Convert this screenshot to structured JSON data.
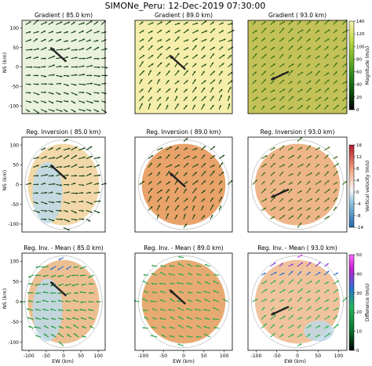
{
  "figure": {
    "suptitle": "SIMONe_Peru: 12-Dec-2019 07:30:00"
  },
  "axes_labels": {
    "ylabel": "NS (km)",
    "xlabel": "EW (km)"
  },
  "panel_titles": [
    [
      "Gradient (  85.0 km)",
      "Gradient (  89.0 km)",
      "Gradient (  93.0 km)"
    ],
    [
      "Reg. Inversion (  85.0 km)",
      "Reg. Inversion (  89.0 km)",
      "Reg. Inversion (  93.0 km)"
    ],
    [
      "Reg. Inv. - Mean (  85.0 km)",
      "Reg. Inv. - Mean (  89.0 km)",
      "Reg. Inv. - Mean (  93.0 km)"
    ]
  ],
  "ticks": {
    "x_labels": [
      "-100",
      "-50",
      "0",
      "50",
      "100"
    ],
    "y_labels": [
      "100",
      "50",
      "0",
      "-50",
      "-100"
    ]
  },
  "colorbars": [
    {
      "label": "Magnitude (m/s)",
      "tick_labels": [
        "140",
        "120",
        "100",
        "80",
        "60",
        "40",
        "20",
        "0"
      ],
      "stops": [
        "#000000",
        "#0b4f0b",
        "#2e8b1f",
        "#7ab82a",
        "#c7dd49",
        "#f5f0b0"
      ]
    },
    {
      "label": "Vertical velocity (m/s)",
      "tick_labels": [
        "16",
        "12",
        "8",
        "4",
        "0",
        "-4",
        "-8",
        "-14"
      ],
      "stops": [
        "#2166ac",
        "#92c5de",
        "#f7f7f7",
        "#f4a582",
        "#b2182b"
      ]
    },
    {
      "label": "Difference (m/s)",
      "tick_labels": [
        "50",
        "40",
        "30",
        "20",
        "10",
        "0"
      ],
      "stops": [
        "#000000",
        "#0b6f2b",
        "#25b45a",
        "#2c6fd0",
        "#c020d0",
        "#ff66ff"
      ]
    }
  ],
  "chart_data": [
    {
      "type": "quiver",
      "title": "Gradient (  85.0 km)",
      "background": "#e8f2dc",
      "arrow_color": "#154015",
      "mean_arrow": [
        -15,
        30
      ],
      "xlim": [
        -120,
        120
      ],
      "ylim": [
        -120,
        120
      ]
    },
    {
      "type": "quiver",
      "title": "Gradient (  89.0 km)",
      "background": "#f4eeaa",
      "arrow_color": "#1e4a14",
      "mean_arrow": [
        -15,
        10
      ],
      "xlim": [
        -120,
        120
      ],
      "ylim": [
        -120,
        120
      ]
    },
    {
      "type": "quiver",
      "title": "Gradient (  93.0 km)",
      "background": "#c2c259",
      "arrow_color": "#3b6f14",
      "mean_arrow": [
        -40,
        -20
      ],
      "xlim": [
        -120,
        120
      ],
      "ylim": [
        -120,
        120
      ]
    },
    {
      "type": "quiver",
      "title": "Reg. Inversion (  85.0 km)",
      "background": "#f2d8a8",
      "arrow_color": "#154015",
      "mean_arrow": [
        -15,
        30
      ],
      "xlim": [
        -120,
        120
      ],
      "ylim": [
        -120,
        120
      ]
    },
    {
      "type": "quiver",
      "title": "Reg. Inversion (  89.0 km)",
      "background": "#e9a26a",
      "arrow_color": "#1e4a14",
      "mean_arrow": [
        -15,
        10
      ],
      "xlim": [
        -120,
        120
      ],
      "ylim": [
        -120,
        120
      ]
    },
    {
      "type": "quiver",
      "title": "Reg. Inversion (  93.0 km)",
      "background": "#efb58a",
      "arrow_color": "#3b6f14",
      "mean_arrow": [
        -40,
        -20
      ],
      "xlim": [
        -120,
        120
      ],
      "ylim": [
        -120,
        120
      ]
    },
    {
      "type": "quiver",
      "title": "Reg. Inv. - Mean (  85.0 km)",
      "background": "#ecbf92",
      "arrow_color": "#1f9a3f",
      "mean_arrow": [
        -15,
        30
      ],
      "xlim": [
        -120,
        120
      ],
      "ylim": [
        -120,
        120
      ]
    },
    {
      "type": "quiver",
      "title": "Reg. Inv. - Mean (  89.0 km)",
      "background": "#e8aa73",
      "arrow_color": "#27a84a",
      "mean_arrow": [
        -15,
        10
      ],
      "xlim": [
        -120,
        120
      ],
      "ylim": [
        -120,
        120
      ]
    },
    {
      "type": "quiver",
      "title": "Reg. Inv. - Mean (  93.0 km)",
      "background": "#f0c39d",
      "arrow_color": "#2fb050",
      "mean_arrow": [
        -40,
        -20
      ],
      "xlim": [
        -120,
        120
      ],
      "ylim": [
        -120,
        120
      ]
    }
  ]
}
